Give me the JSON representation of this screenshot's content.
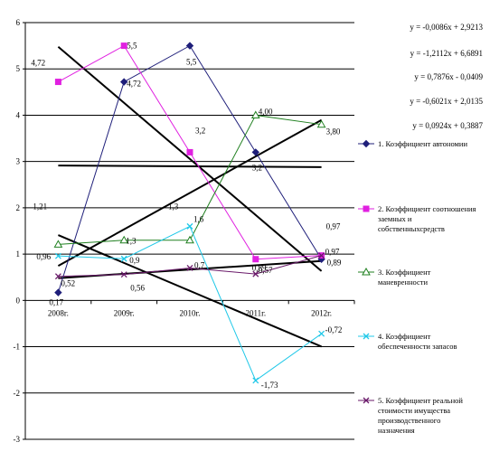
{
  "chart_data": {
    "type": "line",
    "categories": [
      "2008г.",
      "2009г.",
      "2010г.",
      "2011г.",
      "2012г."
    ],
    "ylim": [
      -3,
      6
    ],
    "yticks": [
      "-3",
      "-2",
      "-1",
      "0",
      "1",
      "2",
      "3",
      "4",
      "5",
      "6"
    ],
    "grid": true,
    "legend_position": "right",
    "series": [
      {
        "name": "1.    Коэффициент автономии",
        "color": "#1f1f7a",
        "marker": "diamond",
        "values": [
          0.17,
          4.72,
          5.5,
          3.2,
          0.89
        ],
        "labels": [
          "0,17",
          "4,72",
          "5,5",
          "3,2",
          "0,89"
        ]
      },
      {
        "name": "2.    Коэффициент соотношения заемных и собственныхсредств",
        "color": "#e020e0",
        "marker": "square",
        "values": [
          4.72,
          5.5,
          3.2,
          0.89,
          0.97
        ],
        "labels": [
          "4,72",
          "5,5",
          "3,2",
          "0,89",
          "0,97"
        ]
      },
      {
        "name": "3.    Коэффициент маневренности",
        "color": "#208020",
        "marker": "triangle",
        "values": [
          1.21,
          1.3,
          1.3,
          4.0,
          3.8
        ],
        "labels": [
          "1,21",
          "1,3",
          "1,3",
          "4,00",
          "3,80"
        ]
      },
      {
        "name": "4.    Коэффициент обеспеченности запасов",
        "color": "#20c8e8",
        "marker": "x",
        "values": [
          0.96,
          0.9,
          1.6,
          -1.73,
          -0.72
        ],
        "labels": [
          "0,96",
          "0,9",
          "1,6",
          "-1,73",
          "-0,72"
        ]
      },
      {
        "name": "5.    Коэффициент реальной стоимости имущества производственного назначения",
        "color": "#6a1a6a",
        "marker": "x",
        "values": [
          0.52,
          0.56,
          0.7,
          0.57,
          0.97
        ],
        "labels": [
          "0,52",
          "0,56",
          "0,7",
          "0,57",
          "0,97"
        ]
      }
    ],
    "trendlines": [
      "y = -0,0086x + 2,9213",
      "y = -1,2112x + 6,6891",
      "y = 0,7876x - 0,0409",
      "y = -0,6021x + 2,0135",
      "y = 0,0924x + 0,3887"
    ]
  }
}
